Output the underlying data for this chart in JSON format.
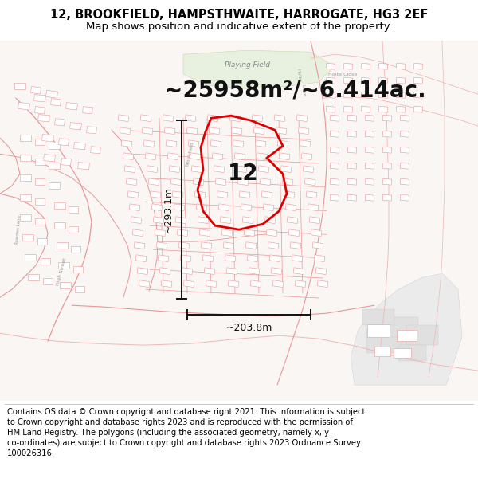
{
  "title": "12, BROOKFIELD, HAMPSTHWAITE, HARROGATE, HG3 2EF",
  "subtitle": "Map shows position and indicative extent of the property.",
  "area_text": "~25958m²/~6.414ac.",
  "dim_vertical": "~293.1m",
  "dim_horizontal": "~203.8m",
  "property_label": "12",
  "footer": "Contains OS data © Crown copyright and database right 2021. This information is subject to Crown copyright and database rights 2023 and is reproduced with the permission of HM Land Registry. The polygons (including the associated geometry, namely x, y co-ordinates) are subject to Crown copyright and database rights 2023 Ordnance Survey 100026316.",
  "map_bg": "#f9f6f3",
  "title_fontsize": 10.5,
  "subtitle_fontsize": 9.5,
  "area_fontsize": 20,
  "label_fontsize": 20,
  "footer_fontsize": 7.2,
  "road_color": "#e89898",
  "road_color_light": "#f0b8b8",
  "building_fill": "#ffffff",
  "building_edge": "#e89898",
  "highlight_color": "#dd0000",
  "dim_color": "#111111",
  "green_field": "#e8f0e0",
  "gray_field": "#e8e8e8"
}
